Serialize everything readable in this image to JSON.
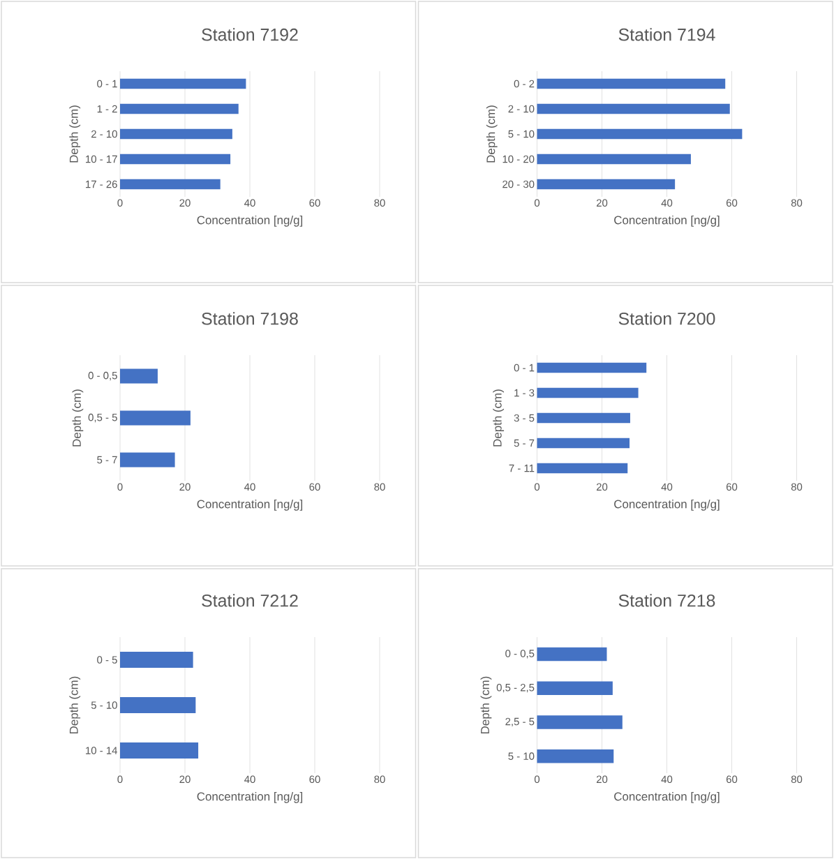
{
  "chart_data": [
    {
      "type": "bar",
      "orientation": "horizontal",
      "title": "Station 7192",
      "xlabel": "Concentration [ng/g]",
      "ylabel": "Depth (cm)",
      "categories": [
        "0 - 1",
        "1 - 2",
        "2 - 10",
        "10 - 17",
        "17 - 26"
      ],
      "values": [
        38.8,
        36.5,
        34.6,
        34.0,
        30.9
      ],
      "color": "#4472c4",
      "xlim": [
        0,
        80
      ],
      "xticks": [
        0,
        20,
        40,
        60,
        80
      ],
      "grid": "x"
    },
    {
      "type": "bar",
      "orientation": "horizontal",
      "title": "Station 7194",
      "xlabel": "Concentration [ng/g]",
      "ylabel": "Depth (cm)",
      "categories": [
        "0 - 2",
        "2 - 10",
        "5 - 10",
        "10 - 20",
        "20 - 30"
      ],
      "values": [
        58.0,
        59.4,
        63.2,
        47.4,
        42.5
      ],
      "color": "#4472c4",
      "xlim": [
        0,
        80
      ],
      "xticks": [
        0,
        20,
        40,
        60,
        80
      ],
      "grid": "x"
    },
    {
      "type": "bar",
      "orientation": "horizontal",
      "title": "Station 7198",
      "xlabel": "Concentration [ng/g]",
      "ylabel": "Depth (cm)",
      "categories": [
        "0 - 0,5",
        "0,5 - 5",
        "5 - 7"
      ],
      "values": [
        11.6,
        21.7,
        16.9
      ],
      "color": "#4472c4",
      "xlim": [
        0,
        80
      ],
      "xticks": [
        0,
        20,
        40,
        60,
        80
      ],
      "grid": "x"
    },
    {
      "type": "bar",
      "orientation": "horizontal",
      "title": "Station 7200",
      "xlabel": "Concentration [ng/g]",
      "ylabel": "Depth (cm)",
      "categories": [
        "0 - 1",
        "1 - 3",
        "3 - 5",
        "5 - 7",
        "7 - 11"
      ],
      "values": [
        33.7,
        31.2,
        28.7,
        28.5,
        27.9
      ],
      "color": "#4472c4",
      "xlim": [
        0,
        80
      ],
      "xticks": [
        0,
        20,
        40,
        60,
        80
      ],
      "grid": "x"
    },
    {
      "type": "bar",
      "orientation": "horizontal",
      "title": "Station 7212",
      "xlabel": "Concentration [ng/g]",
      "ylabel": "Depth (cm)",
      "categories": [
        "0 - 5",
        "5 - 10",
        "10 - 14"
      ],
      "values": [
        22.5,
        23.3,
        24.1
      ],
      "color": "#4472c4",
      "xlim": [
        0,
        80
      ],
      "xticks": [
        0,
        20,
        40,
        60,
        80
      ],
      "grid": "x"
    },
    {
      "type": "bar",
      "orientation": "horizontal",
      "title": "Station 7218",
      "xlabel": "Concentration [ng/g]",
      "ylabel": "Depth (cm)",
      "categories": [
        "0 - 0,5",
        "0,5 - 2,5",
        "2,5 - 5",
        "5 - 10"
      ],
      "values": [
        21.5,
        23.3,
        26.3,
        23.6
      ],
      "color": "#4472c4",
      "xlim": [
        0,
        80
      ],
      "xticks": [
        0,
        20,
        40,
        60,
        80
      ],
      "grid": "x"
    }
  ]
}
